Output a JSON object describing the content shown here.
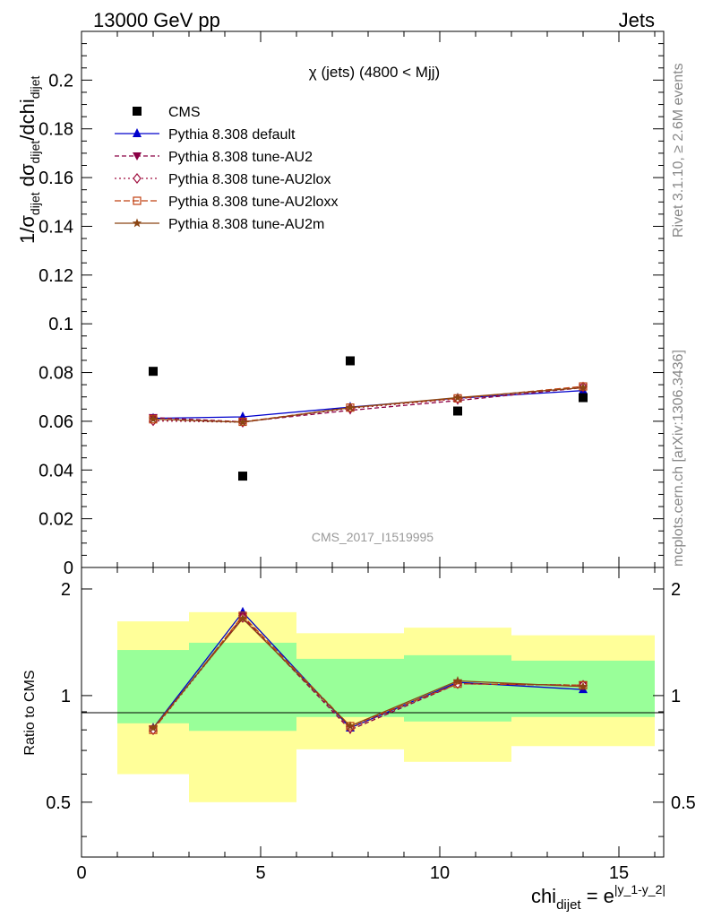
{
  "header": {
    "left": "13000 GeV pp",
    "right": "Jets"
  },
  "side_labels": {
    "rivet": "Rivet 3.1.10, ≥ 2.6M events",
    "mcplots": "mcplots.cern.ch [arXiv:1306.3436]"
  },
  "colors": {
    "cms": "#000000",
    "default": "#0000cc",
    "au2": "#8b0045",
    "au2lox": "#a01040",
    "au2loxx": "#c04010",
    "au2m": "#8b4513",
    "band_inner": "#99ff99",
    "band_outer": "#ffff99"
  },
  "chart_data": [
    {
      "type": "scatter",
      "title": "χ (jets) (4800 < Mjj)",
      "watermark": "CMS_2017_I1519995",
      "ylabel": {
        "prefix": "1/σ",
        "sub1": "dijet",
        "mid": " dσ",
        "sub2": "dijet",
        "suffix": "/dchi",
        "sub3": "dijet"
      },
      "xlim": [
        0,
        16.25
      ],
      "ylim": [
        0,
        0.22
      ],
      "yticks": [
        "0",
        "0.02",
        "0.04",
        "0.06",
        "0.08",
        "0.1",
        "0.12",
        "0.14",
        "0.16",
        "0.18",
        "0.2"
      ],
      "legend": [
        "CMS",
        "Pythia 8.308 default",
        "Pythia 8.308 tune-AU2",
        "Pythia 8.308 tune-AU2lox",
        "Pythia 8.308 tune-AU2loxx",
        "Pythia 8.308 tune-AU2m"
      ],
      "legend_position": "top-left",
      "x": [
        2,
        4.5,
        7.5,
        10.5,
        14
      ],
      "data": {
        "name": "CMS",
        "values": [
          0.0805,
          0.0375,
          0.0848,
          0.0642,
          0.0697
        ]
      },
      "series": [
        {
          "name": "Pythia 8.308 default",
          "values": [
            0.0612,
            0.0618,
            0.0658,
            0.0695,
            0.0726
          ]
        },
        {
          "name": "Pythia 8.308 tune-AU2",
          "values": [
            0.0615,
            0.0598,
            0.0645,
            0.0685,
            0.0738
          ]
        },
        {
          "name": "Pythia 8.308 tune-AU2lox",
          "values": [
            0.0602,
            0.0596,
            0.0653,
            0.0692,
            0.0741
          ]
        },
        {
          "name": "Pythia 8.308 tune-AU2loxx",
          "values": [
            0.0608,
            0.0598,
            0.0656,
            0.0694,
            0.0743
          ]
        },
        {
          "name": "Pythia 8.308 tune-AU2m",
          "values": [
            0.0609,
            0.0596,
            0.0656,
            0.0697,
            0.0738
          ]
        }
      ]
    },
    {
      "type": "line",
      "ylabel": "Ratio to CMS",
      "xlabel": {
        "main": "chi",
        "sub": "dijet",
        "eq": " = e",
        "sup": "|y_1-y_2|"
      },
      "xlim": [
        0,
        16.25
      ],
      "ylim": [
        0.35,
        2.3
      ],
      "xticks": [
        "0",
        "5",
        "10",
        "15"
      ],
      "yticks": [
        "0.5",
        "1",
        "2"
      ],
      "bins": [
        [
          1,
          3
        ],
        [
          3,
          6
        ],
        [
          6,
          9
        ],
        [
          9,
          12
        ],
        [
          12,
          16
        ]
      ],
      "band_inner": [
        [
          0.835,
          1.345
        ],
        [
          0.795,
          1.41
        ],
        [
          0.87,
          1.27
        ],
        [
          0.845,
          1.3
        ],
        [
          0.87,
          1.255
        ]
      ],
      "band_outer": [
        [
          0.6,
          1.62
        ],
        [
          0.5,
          1.72
        ],
        [
          0.705,
          1.5
        ],
        [
          0.65,
          1.555
        ],
        [
          0.72,
          1.48
        ]
      ],
      "x": [
        2,
        4.5,
        7.5,
        10.5,
        14
      ],
      "series": [
        {
          "name": "Pythia 8.308 default",
          "values": [
            0.81,
            1.72,
            0.81,
            1.09,
            1.04
          ]
        },
        {
          "name": "Pythia 8.308 tune-AU2",
          "values": [
            0.805,
            1.67,
            0.8,
            1.08,
            1.07
          ]
        },
        {
          "name": "Pythia 8.308 tune-AU2lox",
          "values": [
            0.8,
            1.66,
            0.81,
            1.08,
            1.07
          ]
        },
        {
          "name": "Pythia 8.308 tune-AU2loxx",
          "values": [
            0.8,
            1.68,
            0.82,
            1.08,
            1.07
          ]
        },
        {
          "name": "Pythia 8.308 tune-AU2m",
          "values": [
            0.81,
            1.65,
            0.82,
            1.1,
            1.06
          ]
        }
      ]
    }
  ]
}
